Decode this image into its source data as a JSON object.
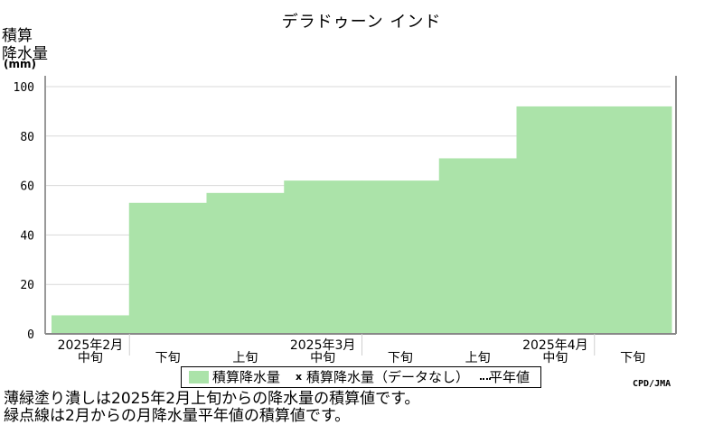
{
  "chart_data": {
    "type": "area",
    "title": "デラドゥーン インド",
    "ylabel_lines": [
      "積算",
      "降水量",
      "(mm)"
    ],
    "ylim": [
      0,
      100
    ],
    "yticks": [
      "0",
      "20",
      "40",
      "60",
      "80",
      "100"
    ],
    "ytick_values": [
      0,
      20,
      40,
      60,
      80,
      100
    ],
    "periods": [
      {
        "label": "中旬",
        "month_label": "2025年2月",
        "value": 7.5
      },
      {
        "label": "下旬",
        "month_label": "",
        "value": 53
      },
      {
        "label": "上旬",
        "month_label": "",
        "value": 57
      },
      {
        "label": "中旬",
        "month_label": "2025年3月",
        "value": 62
      },
      {
        "label": "下旬",
        "month_label": "",
        "value": 62
      },
      {
        "label": "上旬",
        "month_label": "",
        "value": 71
      },
      {
        "label": "中旬",
        "month_label": "2025年4月",
        "value": 92
      },
      {
        "label": "下旬",
        "month_label": "",
        "value": 92
      }
    ],
    "fill_color": "#abe3a9",
    "grid": true,
    "legend": {
      "position": "bottom",
      "items": [
        "積算降水量",
        "x",
        "積算降水量（データなし）",
        "平年値"
      ]
    }
  },
  "credit": "CPD/JMA",
  "notes": [
    "薄緑塗り潰しは2025年2月上旬からの降水量の積算値です。",
    "緑点線は2月からの月降水量平年値の積算値です。"
  ]
}
